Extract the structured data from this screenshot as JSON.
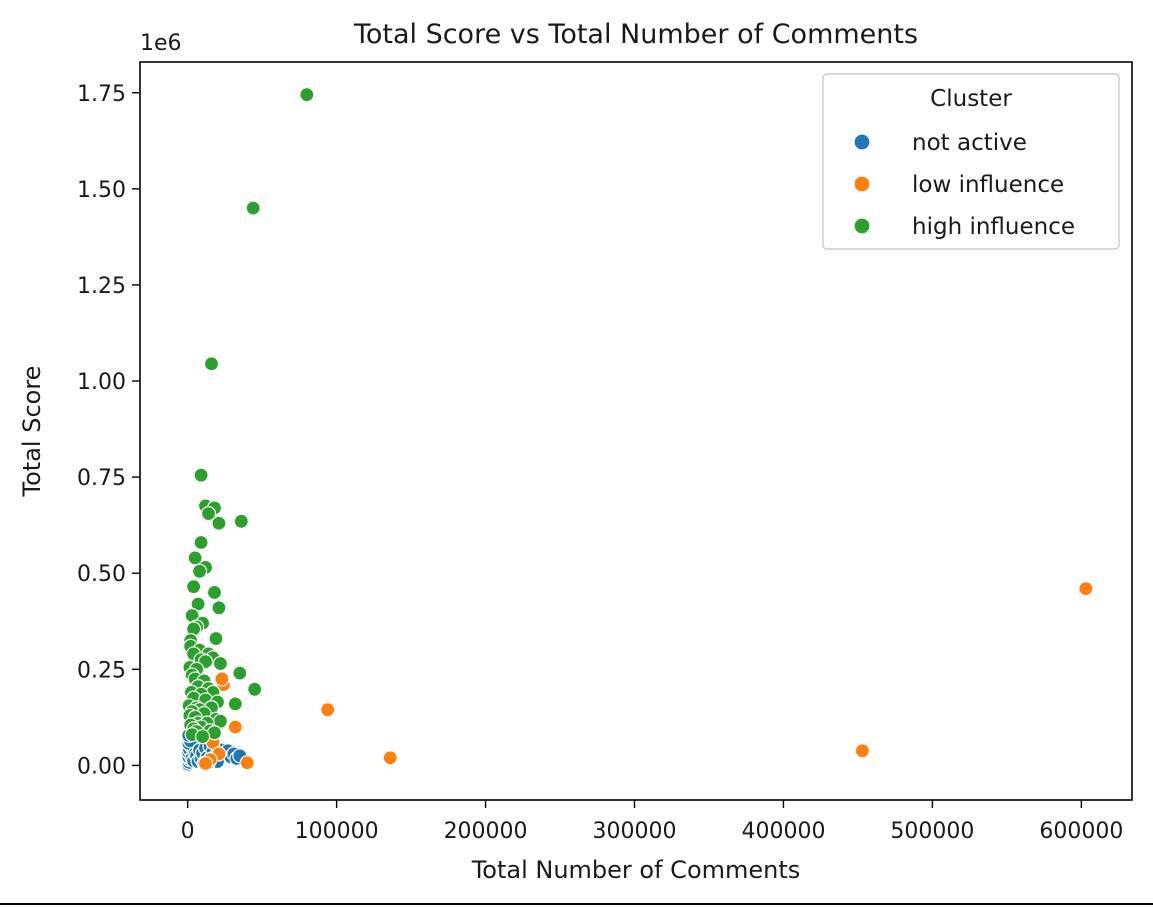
{
  "chart_data": {
    "type": "scatter",
    "title": "Total Score vs Total Number of Comments",
    "xlabel": "Total Number of Comments",
    "ylabel": "Total Score",
    "y_offset_text": "1e6",
    "xlim": [
      -32000,
      634000
    ],
    "ylim": [
      -0.09,
      1.83
    ],
    "x_ticks": [
      0,
      100000,
      200000,
      300000,
      400000,
      500000,
      600000
    ],
    "x_tick_labels": [
      "0",
      "100000",
      "200000",
      "300000",
      "400000",
      "500000",
      "600000"
    ],
    "y_ticks": [
      0.0,
      0.25,
      0.5,
      0.75,
      1.0,
      1.25,
      1.5,
      1.75
    ],
    "y_tick_labels": [
      "0.00",
      "0.25",
      "0.50",
      "0.75",
      "1.00",
      "1.25",
      "1.50",
      "1.75"
    ],
    "grid": false,
    "legend": {
      "title": "Cluster",
      "placement": "top-right"
    },
    "series": [
      {
        "name": "not active",
        "color": "#1f77b4",
        "points": [
          [
            0,
            0.0
          ],
          [
            500,
            0.003
          ],
          [
            1000,
            0.008
          ],
          [
            1500,
            0.015
          ],
          [
            800,
            0.022
          ],
          [
            2000,
            0.028
          ],
          [
            600,
            0.035
          ],
          [
            1200,
            0.042
          ],
          [
            2500,
            0.05
          ],
          [
            900,
            0.057
          ],
          [
            1800,
            0.064
          ],
          [
            700,
            0.078
          ],
          [
            3000,
            0.02
          ],
          [
            4000,
            0.012
          ],
          [
            5000,
            0.03
          ],
          [
            6000,
            0.025
          ],
          [
            7000,
            0.01
          ],
          [
            8000,
            0.04
          ],
          [
            9000,
            0.018
          ],
          [
            10000,
            0.032
          ],
          [
            12000,
            0.045
          ],
          [
            13000,
            0.02
          ],
          [
            15000,
            0.05
          ],
          [
            17000,
            0.035
          ],
          [
            19000,
            0.025
          ],
          [
            21000,
            0.012
          ],
          [
            23000,
            0.04
          ],
          [
            25000,
            0.03
          ],
          [
            27000,
            0.038
          ],
          [
            29000,
            0.022
          ],
          [
            31000,
            0.03
          ],
          [
            33000,
            0.018
          ],
          [
            35000,
            0.025
          ],
          [
            20000,
            0.01
          ],
          [
            14000,
            0.008
          ],
          [
            11000,
            0.005
          ]
        ]
      },
      {
        "name": "low influence",
        "color": "#ff7f0e",
        "points": [
          [
            603000,
            0.46
          ],
          [
            453000,
            0.038
          ],
          [
            136000,
            0.02
          ],
          [
            94000,
            0.145
          ],
          [
            40000,
            0.007
          ],
          [
            32000,
            0.1
          ],
          [
            24000,
            0.21
          ],
          [
            23000,
            0.225
          ],
          [
            18000,
            0.085
          ],
          [
            17000,
            0.06
          ],
          [
            21000,
            0.03
          ],
          [
            15000,
            0.015
          ],
          [
            12000,
            0.005
          ]
        ]
      },
      {
        "name": "high influence",
        "color": "#2ca02c",
        "points": [
          [
            80000,
            1.745
          ],
          [
            44000,
            1.45
          ],
          [
            16000,
            1.045
          ],
          [
            9000,
            0.755
          ],
          [
            12000,
            0.675
          ],
          [
            18000,
            0.67
          ],
          [
            14000,
            0.655
          ],
          [
            36000,
            0.635
          ],
          [
            21000,
            0.63
          ],
          [
            9000,
            0.58
          ],
          [
            5000,
            0.54
          ],
          [
            12000,
            0.515
          ],
          [
            8000,
            0.505
          ],
          [
            4000,
            0.465
          ],
          [
            18000,
            0.45
          ],
          [
            7000,
            0.42
          ],
          [
            21000,
            0.41
          ],
          [
            3000,
            0.39
          ],
          [
            10000,
            0.37
          ],
          [
            6000,
            0.36
          ],
          [
            4000,
            0.355
          ],
          [
            2000,
            0.325
          ],
          [
            19000,
            0.33
          ],
          [
            2000,
            0.31
          ],
          [
            8000,
            0.3
          ],
          [
            4000,
            0.29
          ],
          [
            14000,
            0.29
          ],
          [
            17000,
            0.28
          ],
          [
            9000,
            0.275
          ],
          [
            12000,
            0.27
          ],
          [
            22000,
            0.265
          ],
          [
            1500,
            0.255
          ],
          [
            6000,
            0.25
          ],
          [
            35000,
            0.24
          ],
          [
            3000,
            0.235
          ],
          [
            5000,
            0.225
          ],
          [
            11000,
            0.22
          ],
          [
            45000,
            0.198
          ],
          [
            7000,
            0.205
          ],
          [
            14000,
            0.2
          ],
          [
            2500,
            0.19
          ],
          [
            17000,
            0.19
          ],
          [
            9000,
            0.185
          ],
          [
            4000,
            0.175
          ],
          [
            12000,
            0.17
          ],
          [
            20000,
            0.165
          ],
          [
            32000,
            0.16
          ],
          [
            1000,
            0.155
          ],
          [
            6000,
            0.15
          ],
          [
            8000,
            0.145
          ],
          [
            16000,
            0.15
          ],
          [
            3000,
            0.14
          ],
          [
            11000,
            0.135
          ],
          [
            1500,
            0.13
          ],
          [
            5000,
            0.125
          ],
          [
            19000,
            0.12
          ],
          [
            22000,
            0.115
          ],
          [
            7000,
            0.11
          ],
          [
            13000,
            0.11
          ],
          [
            2000,
            0.105
          ],
          [
            9000,
            0.1
          ],
          [
            4000,
            0.095
          ],
          [
            15000,
            0.09
          ],
          [
            6000,
            0.088
          ],
          [
            18000,
            0.085
          ],
          [
            3000,
            0.08
          ],
          [
            10000,
            0.075
          ]
        ]
      }
    ]
  }
}
